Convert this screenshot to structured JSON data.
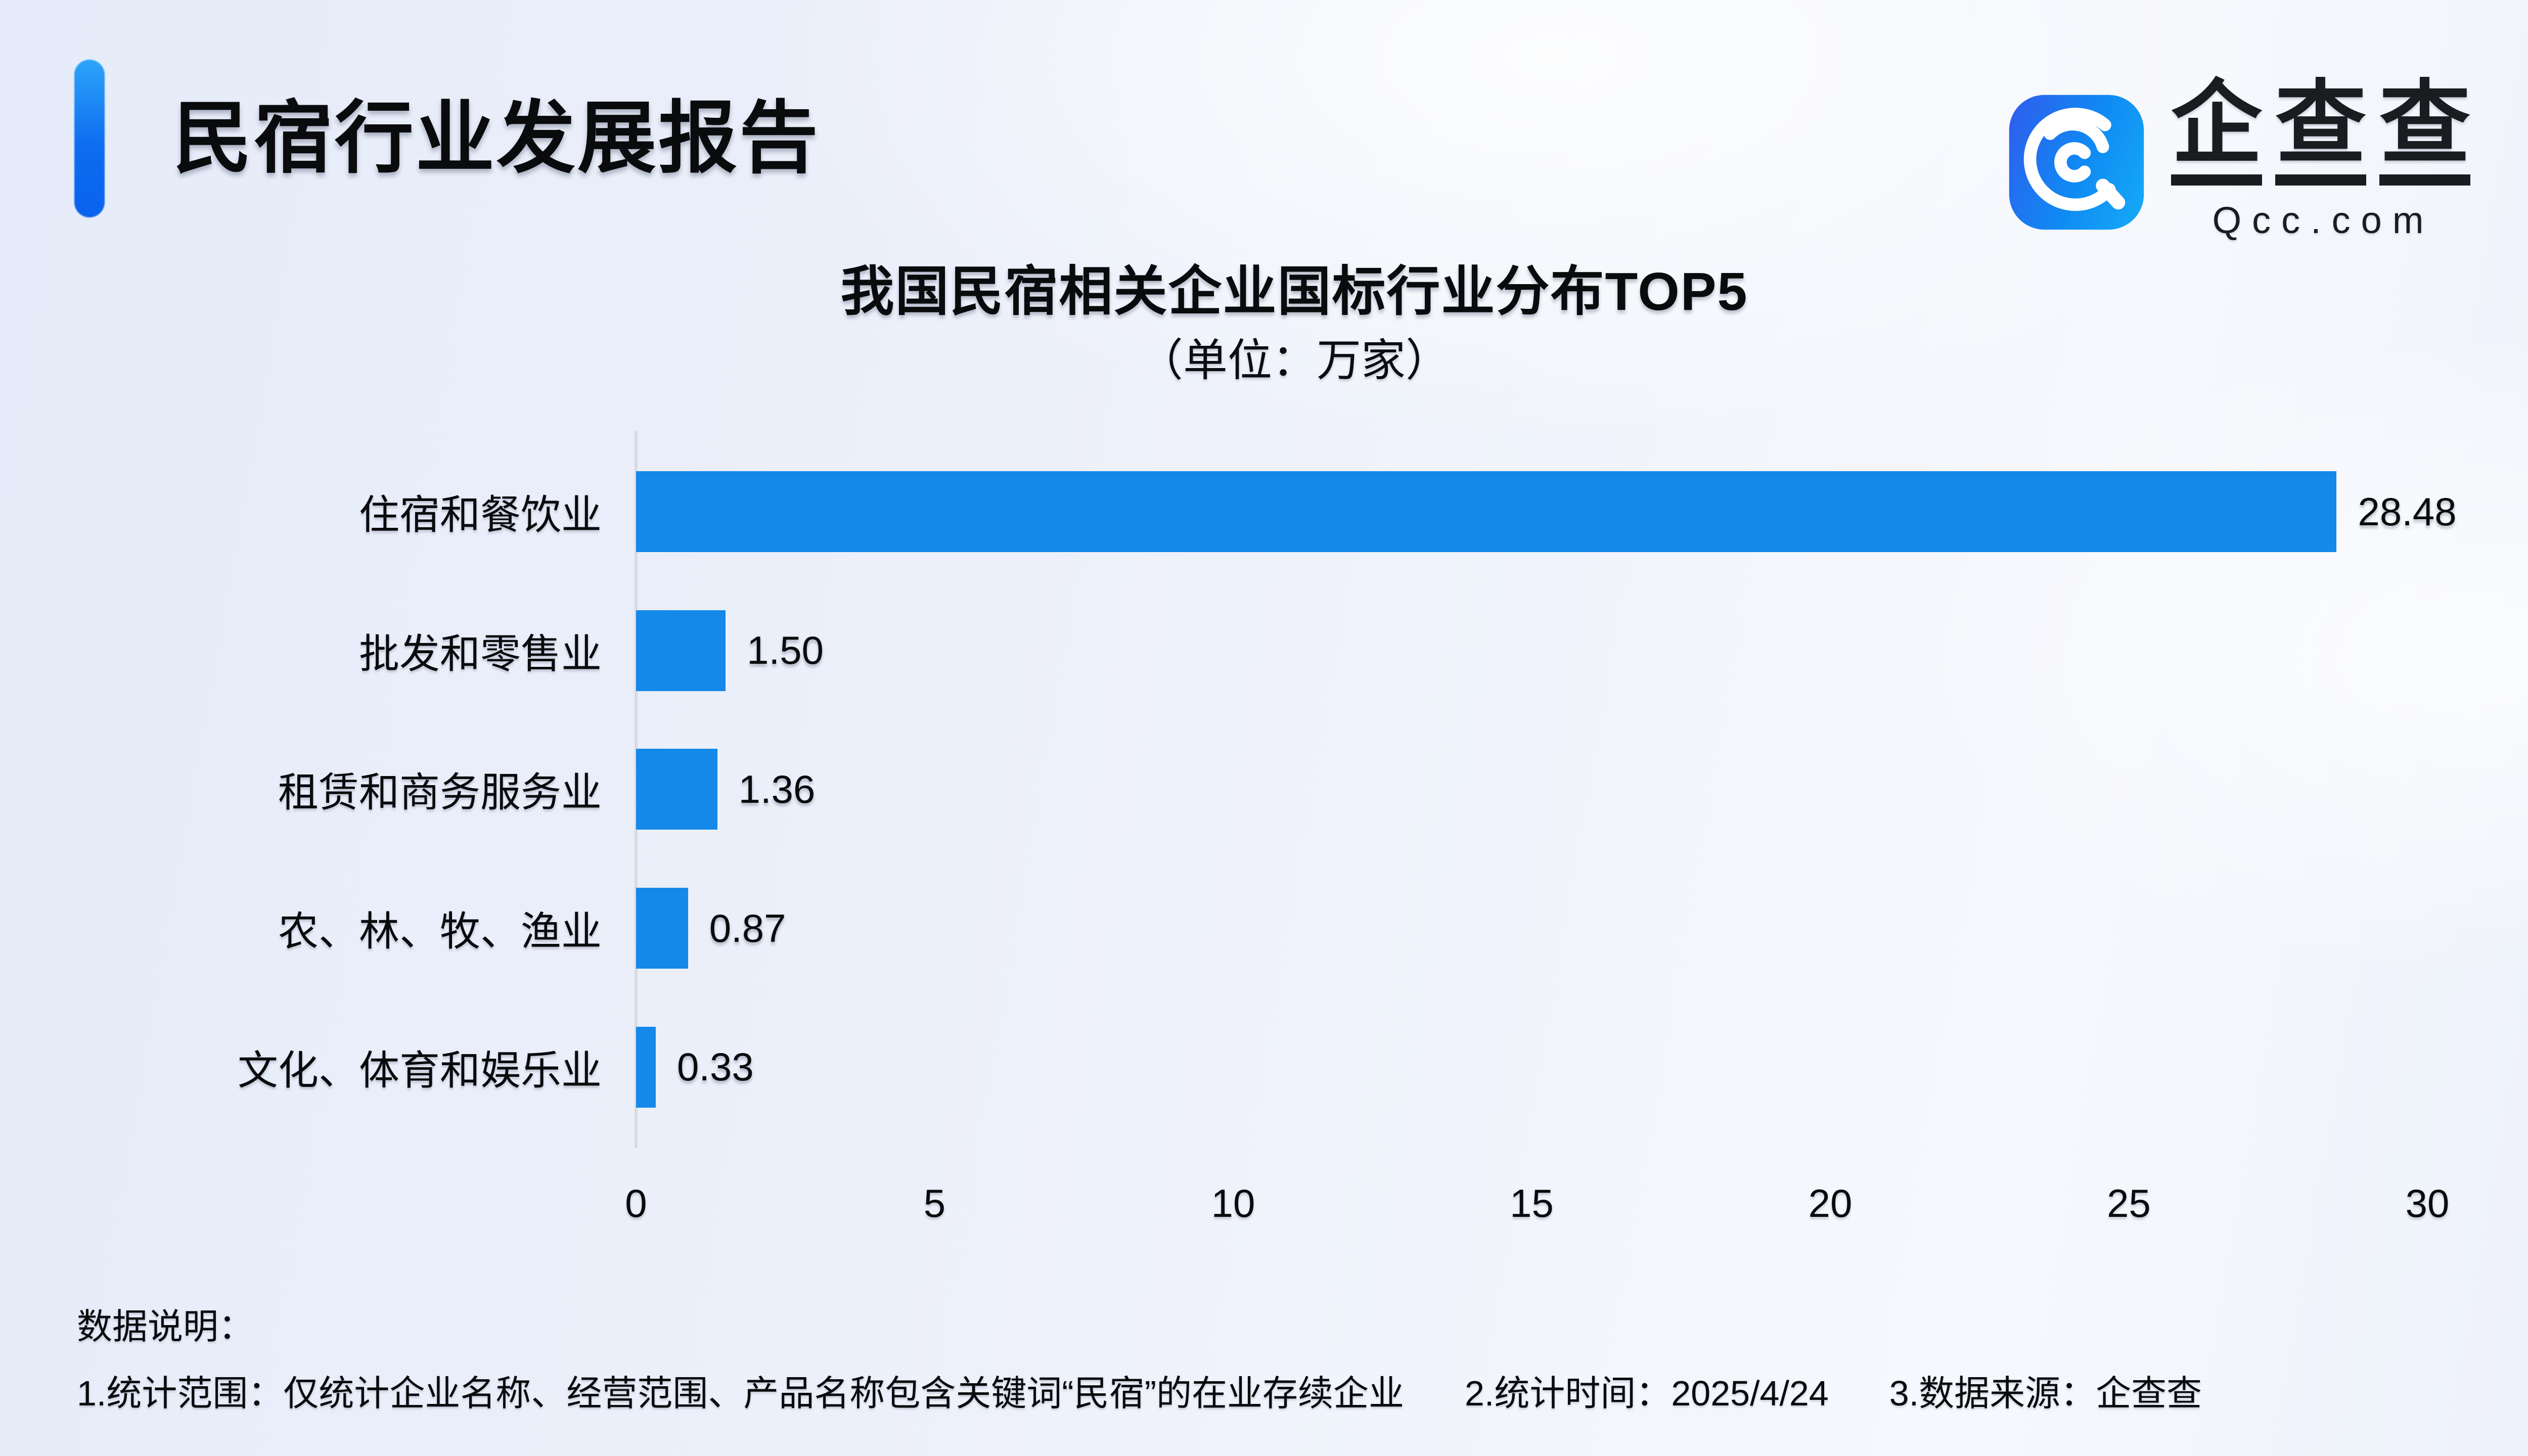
{
  "header": {
    "title": "民宿行业发展报告"
  },
  "brand": {
    "name": "企查查",
    "chars": [
      "企",
      "查",
      "查"
    ],
    "domain": "Qcc.com"
  },
  "chart": {
    "title": "我国民宿相关企业国标行业分布TOP5",
    "subtitle": "（单位：万家）"
  },
  "chart_data": {
    "type": "bar",
    "orientation": "horizontal",
    "title": "我国民宿相关企业国标行业分布TOP5",
    "unit": "万家",
    "categories": [
      "住宿和餐饮业",
      "批发和零售业",
      "租赁和商务服务业",
      "农、林、牧、渔业",
      "文化、体育和娱乐业"
    ],
    "values": [
      28.48,
      1.5,
      1.36,
      0.87,
      0.33
    ],
    "value_labels": [
      "28.48",
      "1.50",
      "1.36",
      "0.87",
      "0.33"
    ],
    "xlim": [
      0,
      30
    ],
    "xticks": [
      0,
      5,
      10,
      15,
      20,
      25,
      30
    ],
    "xlabel": "",
    "ylabel": "",
    "grid": false,
    "legend": false,
    "bar_color": "#1489e9"
  },
  "footer": {
    "heading": "数据说明：",
    "notes": [
      "1.统计范围：仅统计企业名称、经营范围、产品名称包含关键词“民宿”的在业存续企业",
      "2.统计时间：2025/4/24",
      "3.数据来源：企查查"
    ]
  },
  "colors": {
    "bar": "#1489e9",
    "accent_top": "#2da4f9",
    "accent_bottom": "#0a62ee",
    "logo_gradient_left": "#2b63ee",
    "logo_gradient_right": "#14a5f6",
    "axis_line": "#d9dbe0",
    "background_left": "#e6ebf9",
    "background_right": "#f6f8fd",
    "text": "#0a0b0d"
  }
}
